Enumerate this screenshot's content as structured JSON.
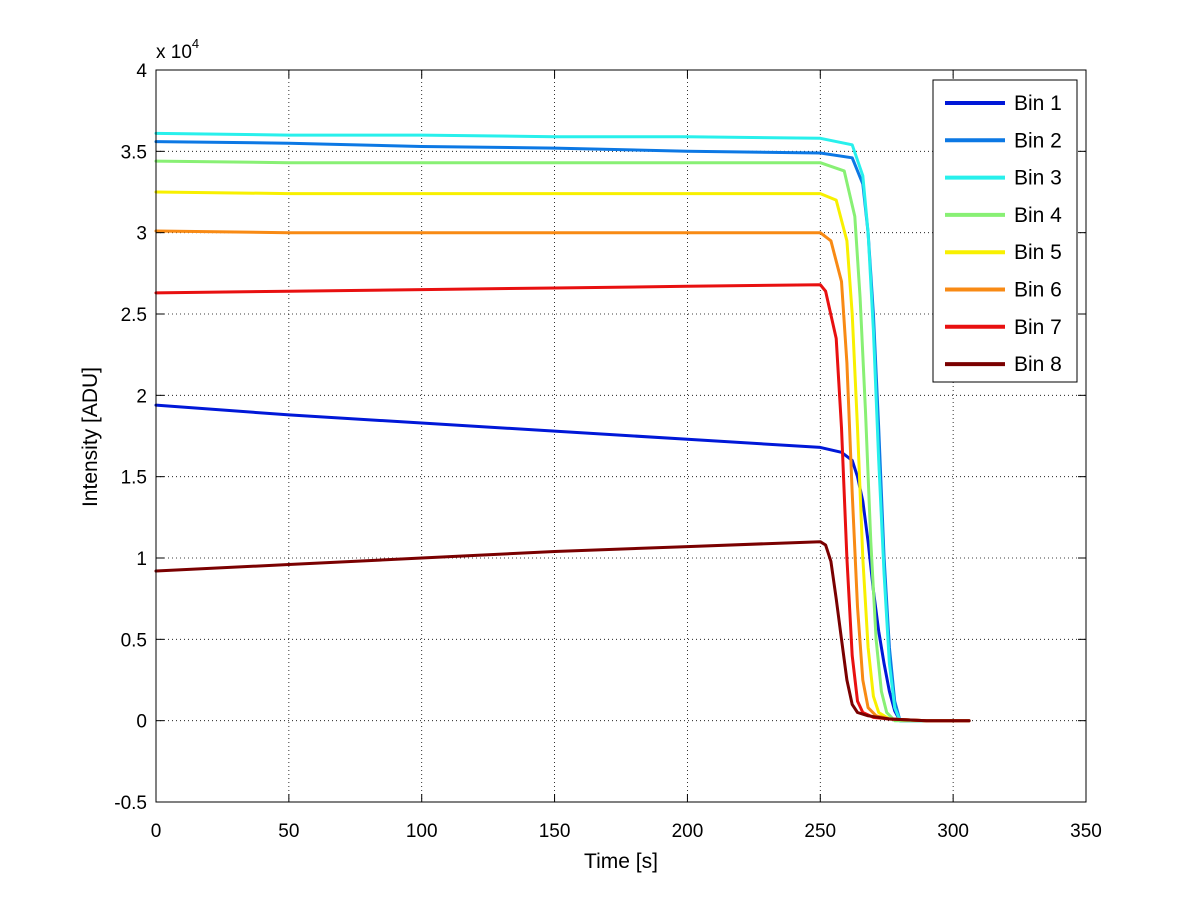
{
  "chart_data": {
    "type": "line",
    "title": "",
    "xlabel": "Time [s]",
    "ylabel": "Intensity [ADU]",
    "y_multiplier": "x 10",
    "y_multiplier_exponent": "4",
    "xlim": [
      0,
      350
    ],
    "ylim": [
      -0.5,
      4
    ],
    "x_ticks": [
      0,
      50,
      100,
      150,
      200,
      250,
      300,
      350
    ],
    "x_tick_labels": [
      "0",
      "50",
      "100",
      "150",
      "200",
      "250",
      "300",
      "350"
    ],
    "y_ticks": [
      -0.5,
      0,
      0.5,
      1,
      1.5,
      2,
      2.5,
      3,
      3.5,
      4
    ],
    "y_tick_labels": [
      "-0.5",
      "0",
      "0.5",
      "1",
      "1.5",
      "2",
      "2.5",
      "3",
      "3.5",
      "4"
    ],
    "grid": true,
    "legend_position": "top-right",
    "series": [
      {
        "name": "Bin 1",
        "color": "#0018d8",
        "x": [
          0,
          50,
          100,
          150,
          200,
          250,
          258,
          262,
          264,
          266,
          268,
          270,
          272,
          274,
          276,
          278,
          280,
          290,
          306
        ],
        "y": [
          1.94,
          1.88,
          1.83,
          1.78,
          1.73,
          1.68,
          1.65,
          1.6,
          1.5,
          1.35,
          1.1,
          0.8,
          0.55,
          0.35,
          0.18,
          0.06,
          0.0,
          0.0,
          0.0
        ]
      },
      {
        "name": "Bin 2",
        "color": "#0c78e4",
        "x": [
          0,
          50,
          100,
          150,
          200,
          250,
          262,
          266,
          268,
          270,
          272,
          274,
          276,
          278,
          280,
          290,
          306
        ],
        "y": [
          3.56,
          3.55,
          3.53,
          3.52,
          3.5,
          3.49,
          3.46,
          3.3,
          3.0,
          2.5,
          1.8,
          1.0,
          0.45,
          0.12,
          0.0,
          0.0,
          0.0
        ]
      },
      {
        "name": "Bin 3",
        "color": "#28f0ec",
        "x": [
          0,
          50,
          100,
          150,
          200,
          250,
          262,
          266,
          268,
          270,
          272,
          274,
          276,
          278,
          280,
          290,
          306
        ],
        "y": [
          3.61,
          3.6,
          3.6,
          3.59,
          3.59,
          3.58,
          3.54,
          3.35,
          3.0,
          2.4,
          1.6,
          0.9,
          0.35,
          0.08,
          0.0,
          0.0,
          0.0
        ]
      },
      {
        "name": "Bin 4",
        "color": "#88f074",
        "x": [
          0,
          50,
          100,
          150,
          200,
          250,
          259,
          263,
          265,
          267,
          269,
          271,
          273,
          275,
          278,
          290,
          306
        ],
        "y": [
          3.44,
          3.43,
          3.43,
          3.43,
          3.43,
          3.43,
          3.38,
          3.1,
          2.6,
          1.9,
          1.1,
          0.5,
          0.18,
          0.05,
          0.0,
          0.0,
          0.0
        ]
      },
      {
        "name": "Bin 5",
        "color": "#f8f000",
        "x": [
          0,
          50,
          100,
          150,
          200,
          250,
          256,
          260,
          262,
          264,
          266,
          268,
          270,
          272,
          276,
          290,
          306
        ],
        "y": [
          3.25,
          3.24,
          3.24,
          3.24,
          3.24,
          3.24,
          3.2,
          2.95,
          2.5,
          1.8,
          1.0,
          0.45,
          0.15,
          0.05,
          0.01,
          0.0,
          0.0
        ]
      },
      {
        "name": "Bin 6",
        "color": "#f88a14",
        "x": [
          0,
          50,
          100,
          150,
          200,
          250,
          254,
          258,
          260,
          262,
          264,
          266,
          268,
          271,
          276,
          290,
          306
        ],
        "y": [
          3.01,
          3.0,
          3.0,
          3.0,
          3.0,
          3.0,
          2.95,
          2.7,
          2.2,
          1.4,
          0.7,
          0.25,
          0.08,
          0.03,
          0.01,
          0.0,
          0.0
        ]
      },
      {
        "name": "Bin 7",
        "color": "#e81010",
        "x": [
          0,
          50,
          100,
          150,
          200,
          250,
          252,
          256,
          258,
          260,
          262,
          264,
          266,
          270,
          276,
          290,
          306
        ],
        "y": [
          2.63,
          2.64,
          2.65,
          2.66,
          2.67,
          2.68,
          2.64,
          2.35,
          1.8,
          1.0,
          0.4,
          0.12,
          0.05,
          0.02,
          0.01,
          0.0,
          0.0
        ]
      },
      {
        "name": "Bin 8",
        "color": "#7a0000",
        "x": [
          0,
          50,
          100,
          150,
          200,
          250,
          252,
          254,
          256,
          258,
          260,
          262,
          264,
          268,
          276,
          290,
          306
        ],
        "y": [
          0.92,
          0.96,
          1.0,
          1.04,
          1.07,
          1.1,
          1.08,
          0.98,
          0.75,
          0.5,
          0.25,
          0.1,
          0.05,
          0.03,
          0.01,
          0.0,
          0.0
        ]
      }
    ]
  }
}
